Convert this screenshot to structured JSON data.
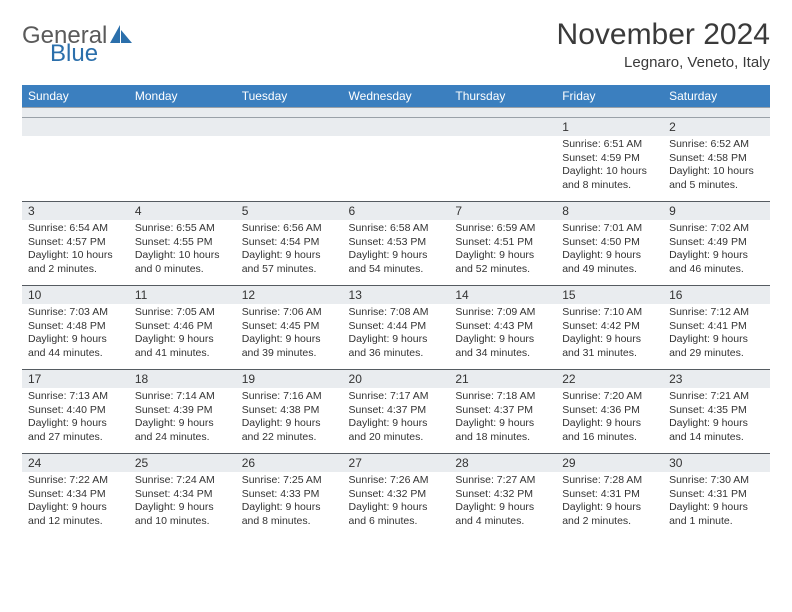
{
  "logo": {
    "text1": "General",
    "text2": "Blue"
  },
  "title": "November 2024",
  "location": "Legnaro, Veneto, Italy",
  "colors": {
    "header_bg": "#3b7fbf",
    "header_text": "#ffffff",
    "daynum_bg": "#e9ecef",
    "border": "#555b61",
    "logo_gray": "#5a5a5a",
    "logo_blue": "#2b6fab"
  },
  "typography": {
    "title_fontsize": 30,
    "location_fontsize": 15,
    "dayheader_fontsize": 12,
    "daynum_fontsize": 12,
    "body_fontsize": 10.5
  },
  "dayHeaders": [
    "Sunday",
    "Monday",
    "Tuesday",
    "Wednesday",
    "Thursday",
    "Friday",
    "Saturday"
  ],
  "weeks": [
    [
      null,
      null,
      null,
      null,
      null,
      {
        "n": "1",
        "sunrise": "6:51 AM",
        "sunset": "4:59 PM",
        "daylight": "10 hours and 8 minutes."
      },
      {
        "n": "2",
        "sunrise": "6:52 AM",
        "sunset": "4:58 PM",
        "daylight": "10 hours and 5 minutes."
      }
    ],
    [
      {
        "n": "3",
        "sunrise": "6:54 AM",
        "sunset": "4:57 PM",
        "daylight": "10 hours and 2 minutes."
      },
      {
        "n": "4",
        "sunrise": "6:55 AM",
        "sunset": "4:55 PM",
        "daylight": "10 hours and 0 minutes."
      },
      {
        "n": "5",
        "sunrise": "6:56 AM",
        "sunset": "4:54 PM",
        "daylight": "9 hours and 57 minutes."
      },
      {
        "n": "6",
        "sunrise": "6:58 AM",
        "sunset": "4:53 PM",
        "daylight": "9 hours and 54 minutes."
      },
      {
        "n": "7",
        "sunrise": "6:59 AM",
        "sunset": "4:51 PM",
        "daylight": "9 hours and 52 minutes."
      },
      {
        "n": "8",
        "sunrise": "7:01 AM",
        "sunset": "4:50 PM",
        "daylight": "9 hours and 49 minutes."
      },
      {
        "n": "9",
        "sunrise": "7:02 AM",
        "sunset": "4:49 PM",
        "daylight": "9 hours and 46 minutes."
      }
    ],
    [
      {
        "n": "10",
        "sunrise": "7:03 AM",
        "sunset": "4:48 PM",
        "daylight": "9 hours and 44 minutes."
      },
      {
        "n": "11",
        "sunrise": "7:05 AM",
        "sunset": "4:46 PM",
        "daylight": "9 hours and 41 minutes."
      },
      {
        "n": "12",
        "sunrise": "7:06 AM",
        "sunset": "4:45 PM",
        "daylight": "9 hours and 39 minutes."
      },
      {
        "n": "13",
        "sunrise": "7:08 AM",
        "sunset": "4:44 PM",
        "daylight": "9 hours and 36 minutes."
      },
      {
        "n": "14",
        "sunrise": "7:09 AM",
        "sunset": "4:43 PM",
        "daylight": "9 hours and 34 minutes."
      },
      {
        "n": "15",
        "sunrise": "7:10 AM",
        "sunset": "4:42 PM",
        "daylight": "9 hours and 31 minutes."
      },
      {
        "n": "16",
        "sunrise": "7:12 AM",
        "sunset": "4:41 PM",
        "daylight": "9 hours and 29 minutes."
      }
    ],
    [
      {
        "n": "17",
        "sunrise": "7:13 AM",
        "sunset": "4:40 PM",
        "daylight": "9 hours and 27 minutes."
      },
      {
        "n": "18",
        "sunrise": "7:14 AM",
        "sunset": "4:39 PM",
        "daylight": "9 hours and 24 minutes."
      },
      {
        "n": "19",
        "sunrise": "7:16 AM",
        "sunset": "4:38 PM",
        "daylight": "9 hours and 22 minutes."
      },
      {
        "n": "20",
        "sunrise": "7:17 AM",
        "sunset": "4:37 PM",
        "daylight": "9 hours and 20 minutes."
      },
      {
        "n": "21",
        "sunrise": "7:18 AM",
        "sunset": "4:37 PM",
        "daylight": "9 hours and 18 minutes."
      },
      {
        "n": "22",
        "sunrise": "7:20 AM",
        "sunset": "4:36 PM",
        "daylight": "9 hours and 16 minutes."
      },
      {
        "n": "23",
        "sunrise": "7:21 AM",
        "sunset": "4:35 PM",
        "daylight": "9 hours and 14 minutes."
      }
    ],
    [
      {
        "n": "24",
        "sunrise": "7:22 AM",
        "sunset": "4:34 PM",
        "daylight": "9 hours and 12 minutes."
      },
      {
        "n": "25",
        "sunrise": "7:24 AM",
        "sunset": "4:34 PM",
        "daylight": "9 hours and 10 minutes."
      },
      {
        "n": "26",
        "sunrise": "7:25 AM",
        "sunset": "4:33 PM",
        "daylight": "9 hours and 8 minutes."
      },
      {
        "n": "27",
        "sunrise": "7:26 AM",
        "sunset": "4:32 PM",
        "daylight": "9 hours and 6 minutes."
      },
      {
        "n": "28",
        "sunrise": "7:27 AM",
        "sunset": "4:32 PM",
        "daylight": "9 hours and 4 minutes."
      },
      {
        "n": "29",
        "sunrise": "7:28 AM",
        "sunset": "4:31 PM",
        "daylight": "9 hours and 2 minutes."
      },
      {
        "n": "30",
        "sunrise": "7:30 AM",
        "sunset": "4:31 PM",
        "daylight": "9 hours and 1 minute."
      }
    ]
  ],
  "labels": {
    "sunrise": "Sunrise:",
    "sunset": "Sunset:",
    "daylight": "Daylight:"
  }
}
